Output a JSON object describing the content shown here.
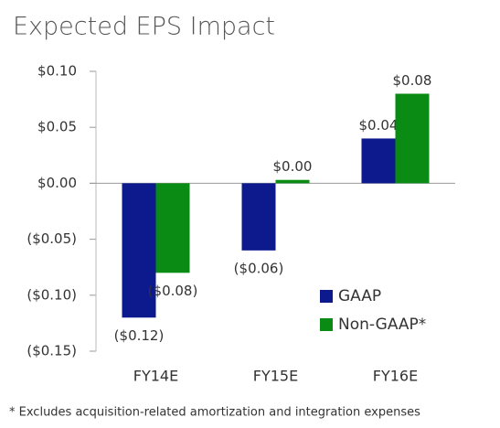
{
  "chart_data": {
    "type": "bar",
    "title": "Expected EPS Impact",
    "categories": [
      "FY14E",
      "FY15E",
      "FY16E"
    ],
    "series": [
      {
        "name": "GAAP",
        "color": "#0c1a8e",
        "values": [
          -0.12,
          -0.06,
          0.04
        ],
        "value_labels": [
          "($0.12)",
          "($0.06)",
          "$0.04"
        ]
      },
      {
        "name": "Non-GAAP*",
        "color": "#0a8c14",
        "values": [
          -0.08,
          0.003,
          0.08
        ],
        "value_labels": [
          "($0.08)",
          "$0.00",
          "$0.08"
        ]
      }
    ],
    "ylim": [
      -0.15,
      0.1
    ],
    "yticks": [
      {
        "value": 0.1,
        "label": "$0.10"
      },
      {
        "value": 0.05,
        "label": "$0.05"
      },
      {
        "value": 0,
        "label": "$0.00"
      },
      {
        "value": -0.05,
        "label": "($0.05)"
      },
      {
        "value": -0.1,
        "label": "($0.10)"
      },
      {
        "value": -0.15,
        "label": "($0.15)"
      }
    ],
    "legend": "lower right",
    "footnote": "* Excludes acquisition-related amortization and integration expenses"
  }
}
